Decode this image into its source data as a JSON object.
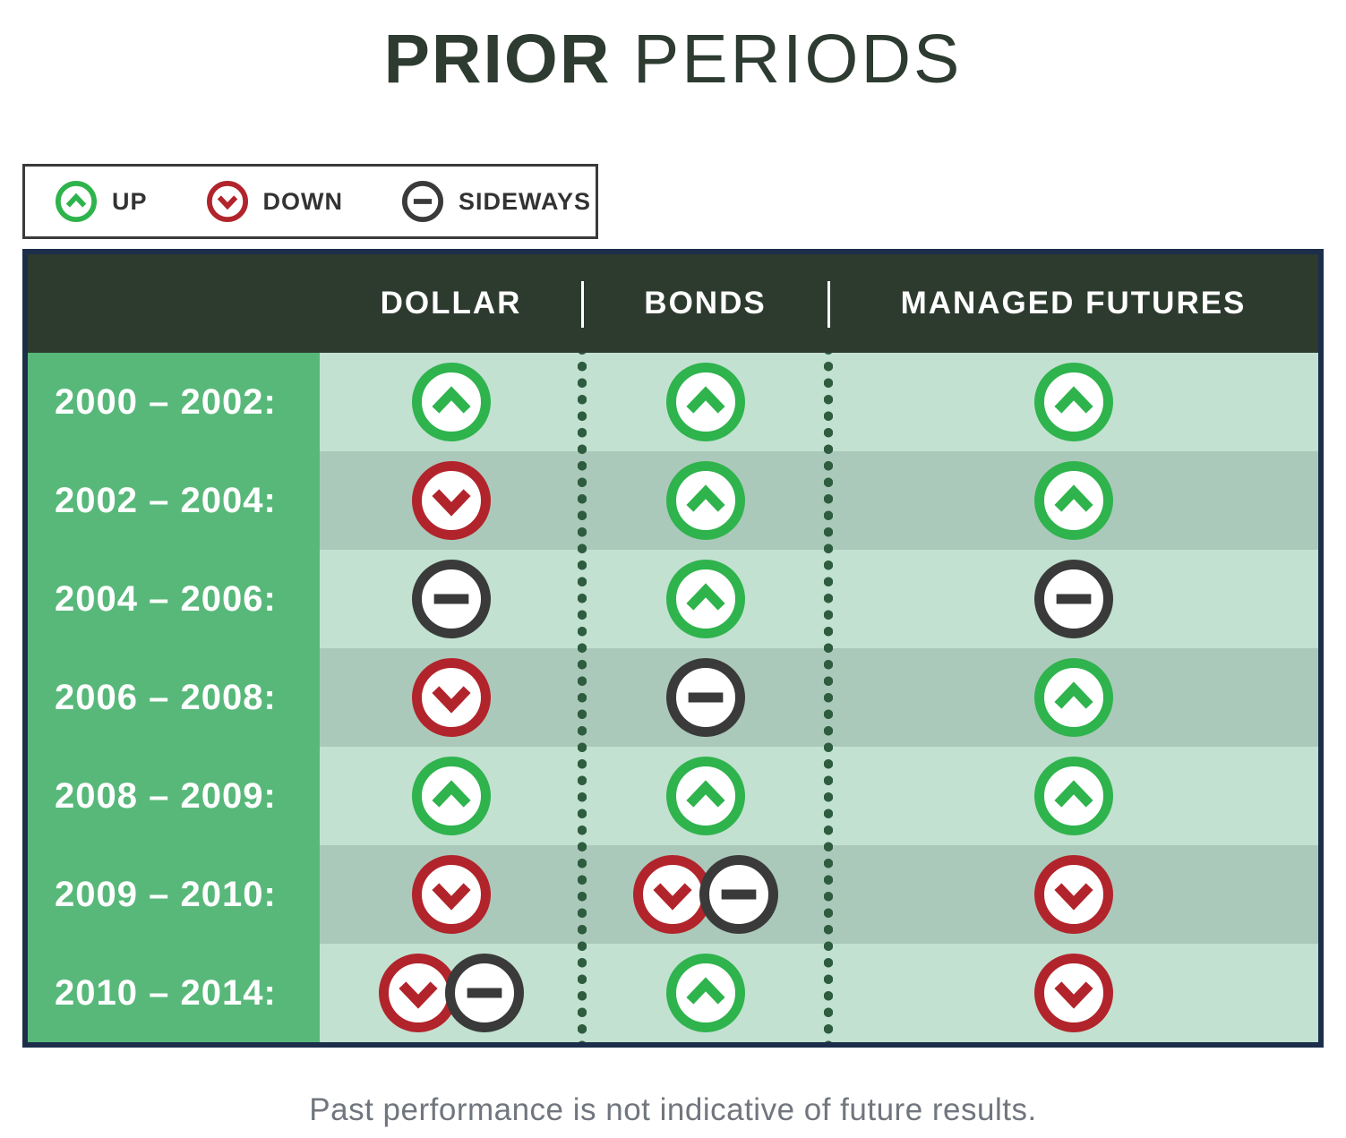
{
  "title": {
    "bold": "PRIOR",
    "light": " PERIODS"
  },
  "legend": {
    "items": [
      {
        "type": "up",
        "label": "UP"
      },
      {
        "type": "down",
        "label": "DOWN"
      },
      {
        "type": "sideways",
        "label": "SIDEWAYS"
      }
    ]
  },
  "table": {
    "columns": [
      "DOLLAR",
      "BONDS",
      "MANAGED FUTURES"
    ],
    "rows": [
      {
        "period": "2000 – 2002:",
        "cells": [
          [
            "up"
          ],
          [
            "up"
          ],
          [
            "up"
          ]
        ]
      },
      {
        "period": "2002 – 2004:",
        "cells": [
          [
            "down"
          ],
          [
            "up"
          ],
          [
            "up"
          ]
        ]
      },
      {
        "period": "2004 – 2006:",
        "cells": [
          [
            "sideways"
          ],
          [
            "up"
          ],
          [
            "sideways"
          ]
        ]
      },
      {
        "period": "2006 – 2008:",
        "cells": [
          [
            "down"
          ],
          [
            "sideways"
          ],
          [
            "up"
          ]
        ]
      },
      {
        "period": "2008 – 2009:",
        "cells": [
          [
            "up"
          ],
          [
            "up"
          ],
          [
            "up"
          ]
        ]
      },
      {
        "period": "2009 – 2010:",
        "cells": [
          [
            "down"
          ],
          [
            "down",
            "sideways"
          ],
          [
            "down"
          ]
        ]
      },
      {
        "period": "2010 – 2014:",
        "cells": [
          [
            "down",
            "sideways"
          ],
          [
            "up"
          ],
          [
            "down"
          ]
        ]
      }
    ]
  },
  "footer": "Past performance is not indicative of future results.",
  "colors": {
    "up": "#2fb34d",
    "down": "#b2242b",
    "sideways": "#3a3a3a",
    "label_column": "#58b87a",
    "row_light": "#c2e1d1",
    "row_dark": "#abc9ba",
    "header_bg": "#2d3b2f",
    "table_border": "#1c2e4a",
    "dots": "#2d5c3e",
    "title": "#2d3b31",
    "footer_text": "#71767e"
  },
  "chart_data": {
    "type": "table",
    "title": "PRIOR PERIODS",
    "legend": [
      "UP",
      "DOWN",
      "SIDEWAYS"
    ],
    "columns": [
      "DOLLAR",
      "BONDS",
      "MANAGED FUTURES"
    ],
    "rows": [
      "2000 – 2002",
      "2002 – 2004",
      "2004 – 2006",
      "2006 – 2008",
      "2008 – 2009",
      "2009 – 2010",
      "2010 – 2014"
    ],
    "values": [
      [
        "up",
        "up",
        "up"
      ],
      [
        "down",
        "up",
        "up"
      ],
      [
        "sideways",
        "up",
        "sideways"
      ],
      [
        "down",
        "sideways",
        "up"
      ],
      [
        "up",
        "up",
        "up"
      ],
      [
        "down",
        "down+sideways",
        "down"
      ],
      [
        "down+sideways",
        "up",
        "down"
      ]
    ],
    "footnote": "Past performance is not indicative of future results."
  }
}
